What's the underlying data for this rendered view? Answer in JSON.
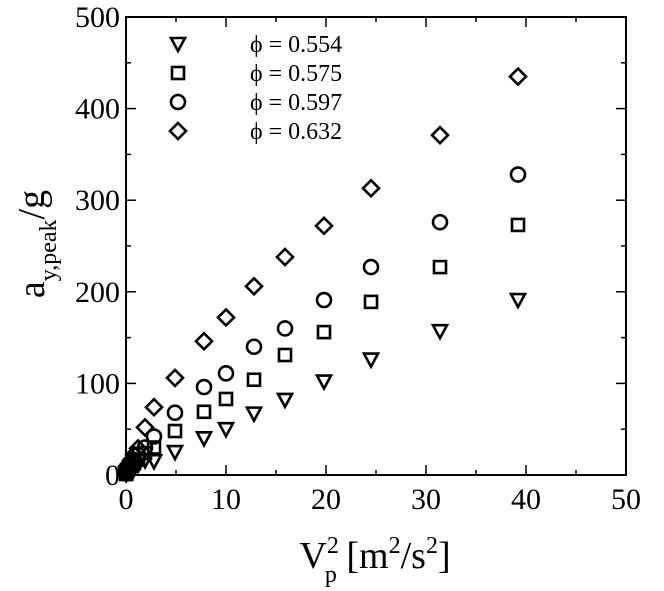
{
  "chart_data": {
    "type": "scatter",
    "title": "",
    "xlabel": {
      "base": "V",
      "sup": "2",
      "sub": "p",
      "unit_pre": " [m",
      "unit_sup1": "2",
      "unit_mid": "/s",
      "unit_sup2": "2",
      "unit_post": "]"
    },
    "ylabel": {
      "base": "a",
      "sub": "y,peak",
      "post": "/g"
    },
    "xlim": [
      0,
      50
    ],
    "ylim": [
      0,
      500
    ],
    "xticks": [
      0,
      10,
      20,
      30,
      40,
      50
    ],
    "yticks": [
      0,
      100,
      200,
      300,
      400,
      500
    ],
    "grid": false,
    "legend_position": "top-left",
    "series": [
      {
        "name": "ϕ = 0.554",
        "marker": "triangle-down",
        "x": [
          0.02,
          0.05,
          0.1,
          0.2,
          0.3,
          0.5,
          0.8,
          1.2,
          1.9,
          2.8,
          4.9,
          7.8,
          10.0,
          12.8,
          15.9,
          19.8,
          24.5,
          31.4,
          39.2
        ],
        "y": [
          1,
          2,
          3,
          4,
          5,
          6,
          8,
          11,
          16,
          15,
          25,
          40,
          50,
          67,
          82,
          102,
          126,
          157,
          191
        ]
      },
      {
        "name": "ϕ = 0.575",
        "marker": "square",
        "x": [
          0.02,
          0.05,
          0.1,
          0.2,
          0.3,
          0.5,
          0.8,
          1.2,
          1.9,
          2.8,
          4.9,
          7.8,
          10.0,
          12.8,
          15.9,
          19.8,
          24.5,
          31.4,
          39.2
        ],
        "y": [
          1,
          3,
          4,
          6,
          8,
          10,
          13,
          17,
          24,
          30,
          48,
          69,
          83,
          104,
          131,
          156,
          189,
          227,
          273
        ]
      },
      {
        "name": "ϕ = 0.597",
        "marker": "circle",
        "x": [
          0.02,
          0.05,
          0.1,
          0.2,
          0.3,
          0.5,
          0.8,
          1.2,
          1.9,
          2.8,
          4.9,
          7.8,
          10.0,
          12.8,
          15.9,
          19.8,
          24.5,
          31.4,
          39.2
        ],
        "y": [
          2,
          3,
          5,
          7,
          9,
          12,
          16,
          22,
          30,
          42,
          68,
          96,
          111,
          140,
          160,
          191,
          227,
          276,
          328
        ]
      },
      {
        "name": "ϕ = 0.632",
        "marker": "diamond",
        "x": [
          0.02,
          0.05,
          0.1,
          0.2,
          0.3,
          0.5,
          0.8,
          1.2,
          1.9,
          2.8,
          4.9,
          7.8,
          10.0,
          12.8,
          15.9,
          19.8,
          24.5,
          31.4,
          39.2
        ],
        "y": [
          2,
          4,
          6,
          9,
          12,
          16,
          22,
          29,
          52,
          74,
          106,
          146,
          172,
          206,
          238,
          272,
          313,
          371,
          435
        ]
      }
    ]
  }
}
